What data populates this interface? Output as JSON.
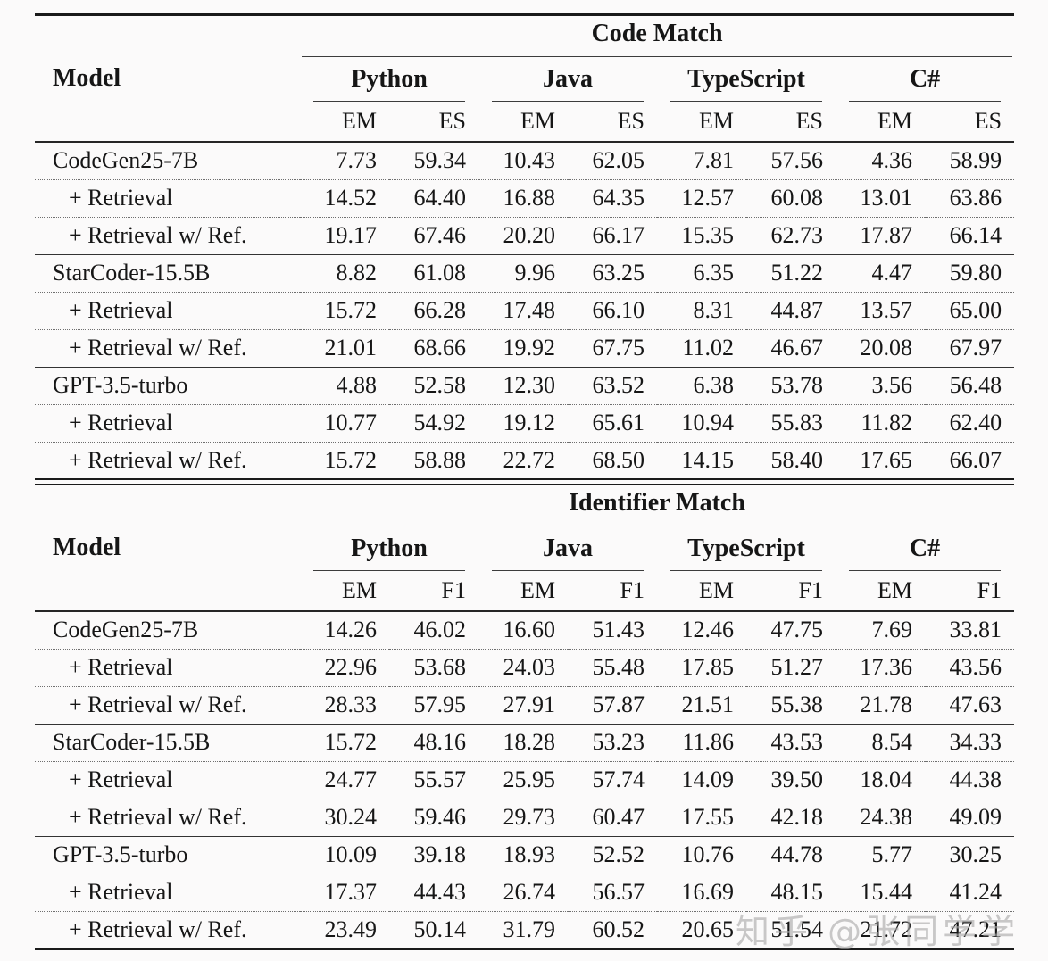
{
  "page": {
    "background": "#fbfafa",
    "text_color": "#161616",
    "watermark": "知乎 @张同学学"
  },
  "tables": [
    {
      "id": "code-match",
      "group_header": "Code Match",
      "model_header": "Model",
      "languages": [
        "Python",
        "Java",
        "TypeScript",
        "C#"
      ],
      "metrics": [
        "EM",
        "ES"
      ],
      "rows": [
        {
          "model": "CodeGen25-7B",
          "indent": false,
          "sep": "none",
          "values": [
            "7.73",
            "59.34",
            "10.43",
            "62.05",
            "7.81",
            "57.56",
            "4.36",
            "58.99"
          ]
        },
        {
          "model": "+ Retrieval",
          "indent": true,
          "sep": "dotted",
          "values": [
            "14.52",
            "64.40",
            "16.88",
            "64.35",
            "12.57",
            "60.08",
            "13.01",
            "63.86"
          ]
        },
        {
          "model": "+ Retrieval w/ Ref.",
          "indent": true,
          "sep": "dotted",
          "values": [
            "19.17",
            "67.46",
            "20.20",
            "66.17",
            "15.35",
            "62.73",
            "17.87",
            "66.14"
          ]
        },
        {
          "model": "StarCoder-15.5B",
          "indent": false,
          "sep": "solid",
          "values": [
            "8.82",
            "61.08",
            "9.96",
            "63.25",
            "6.35",
            "51.22",
            "4.47",
            "59.80"
          ]
        },
        {
          "model": "+ Retrieval",
          "indent": true,
          "sep": "dotted",
          "values": [
            "15.72",
            "66.28",
            "17.48",
            "66.10",
            "8.31",
            "44.87",
            "13.57",
            "65.00"
          ]
        },
        {
          "model": "+ Retrieval w/ Ref.",
          "indent": true,
          "sep": "dotted",
          "values": [
            "21.01",
            "68.66",
            "19.92",
            "67.75",
            "11.02",
            "46.67",
            "20.08",
            "67.97"
          ]
        },
        {
          "model": "GPT-3.5-turbo",
          "indent": false,
          "sep": "solid",
          "values": [
            "4.88",
            "52.58",
            "12.30",
            "63.52",
            "6.38",
            "53.78",
            "3.56",
            "56.48"
          ]
        },
        {
          "model": "+ Retrieval",
          "indent": true,
          "sep": "dotted",
          "values": [
            "10.77",
            "54.92",
            "19.12",
            "65.61",
            "10.94",
            "55.83",
            "11.82",
            "62.40"
          ]
        },
        {
          "model": "+ Retrieval w/ Ref.",
          "indent": true,
          "sep": "dotted",
          "values": [
            "15.72",
            "58.88",
            "22.72",
            "68.50",
            "14.15",
            "58.40",
            "17.65",
            "66.07"
          ]
        }
      ]
    },
    {
      "id": "identifier-match",
      "group_header": "Identifier Match",
      "model_header": "Model",
      "languages": [
        "Python",
        "Java",
        "TypeScript",
        "C#"
      ],
      "metrics": [
        "EM",
        "F1"
      ],
      "rows": [
        {
          "model": "CodeGen25-7B",
          "indent": false,
          "sep": "none",
          "values": [
            "14.26",
            "46.02",
            "16.60",
            "51.43",
            "12.46",
            "47.75",
            "7.69",
            "33.81"
          ]
        },
        {
          "model": "+ Retrieval",
          "indent": true,
          "sep": "dotted",
          "values": [
            "22.96",
            "53.68",
            "24.03",
            "55.48",
            "17.85",
            "51.27",
            "17.36",
            "43.56"
          ]
        },
        {
          "model": "+ Retrieval w/ Ref.",
          "indent": true,
          "sep": "dotted",
          "values": [
            "28.33",
            "57.95",
            "27.91",
            "57.87",
            "21.51",
            "55.38",
            "21.78",
            "47.63"
          ]
        },
        {
          "model": "StarCoder-15.5B",
          "indent": false,
          "sep": "solid",
          "values": [
            "15.72",
            "48.16",
            "18.28",
            "53.23",
            "11.86",
            "43.53",
            "8.54",
            "34.33"
          ]
        },
        {
          "model": "+ Retrieval",
          "indent": true,
          "sep": "dotted",
          "values": [
            "24.77",
            "55.57",
            "25.95",
            "57.74",
            "14.09",
            "39.50",
            "18.04",
            "44.38"
          ]
        },
        {
          "model": "+ Retrieval w/ Ref.",
          "indent": true,
          "sep": "dotted",
          "values": [
            "30.24",
            "59.46",
            "29.73",
            "60.47",
            "17.55",
            "42.18",
            "24.38",
            "49.09"
          ]
        },
        {
          "model": "GPT-3.5-turbo",
          "indent": false,
          "sep": "solid",
          "values": [
            "10.09",
            "39.18",
            "18.93",
            "52.52",
            "10.76",
            "44.78",
            "5.77",
            "30.25"
          ]
        },
        {
          "model": "+ Retrieval",
          "indent": true,
          "sep": "dotted",
          "values": [
            "17.37",
            "44.43",
            "26.74",
            "56.57",
            "16.69",
            "48.15",
            "15.44",
            "41.24"
          ]
        },
        {
          "model": "+ Retrieval w/ Ref.",
          "indent": true,
          "sep": "dotted",
          "values": [
            "23.49",
            "50.14",
            "31.79",
            "60.52",
            "20.65",
            "51.54",
            "21.72",
            "47.21"
          ]
        }
      ]
    }
  ]
}
